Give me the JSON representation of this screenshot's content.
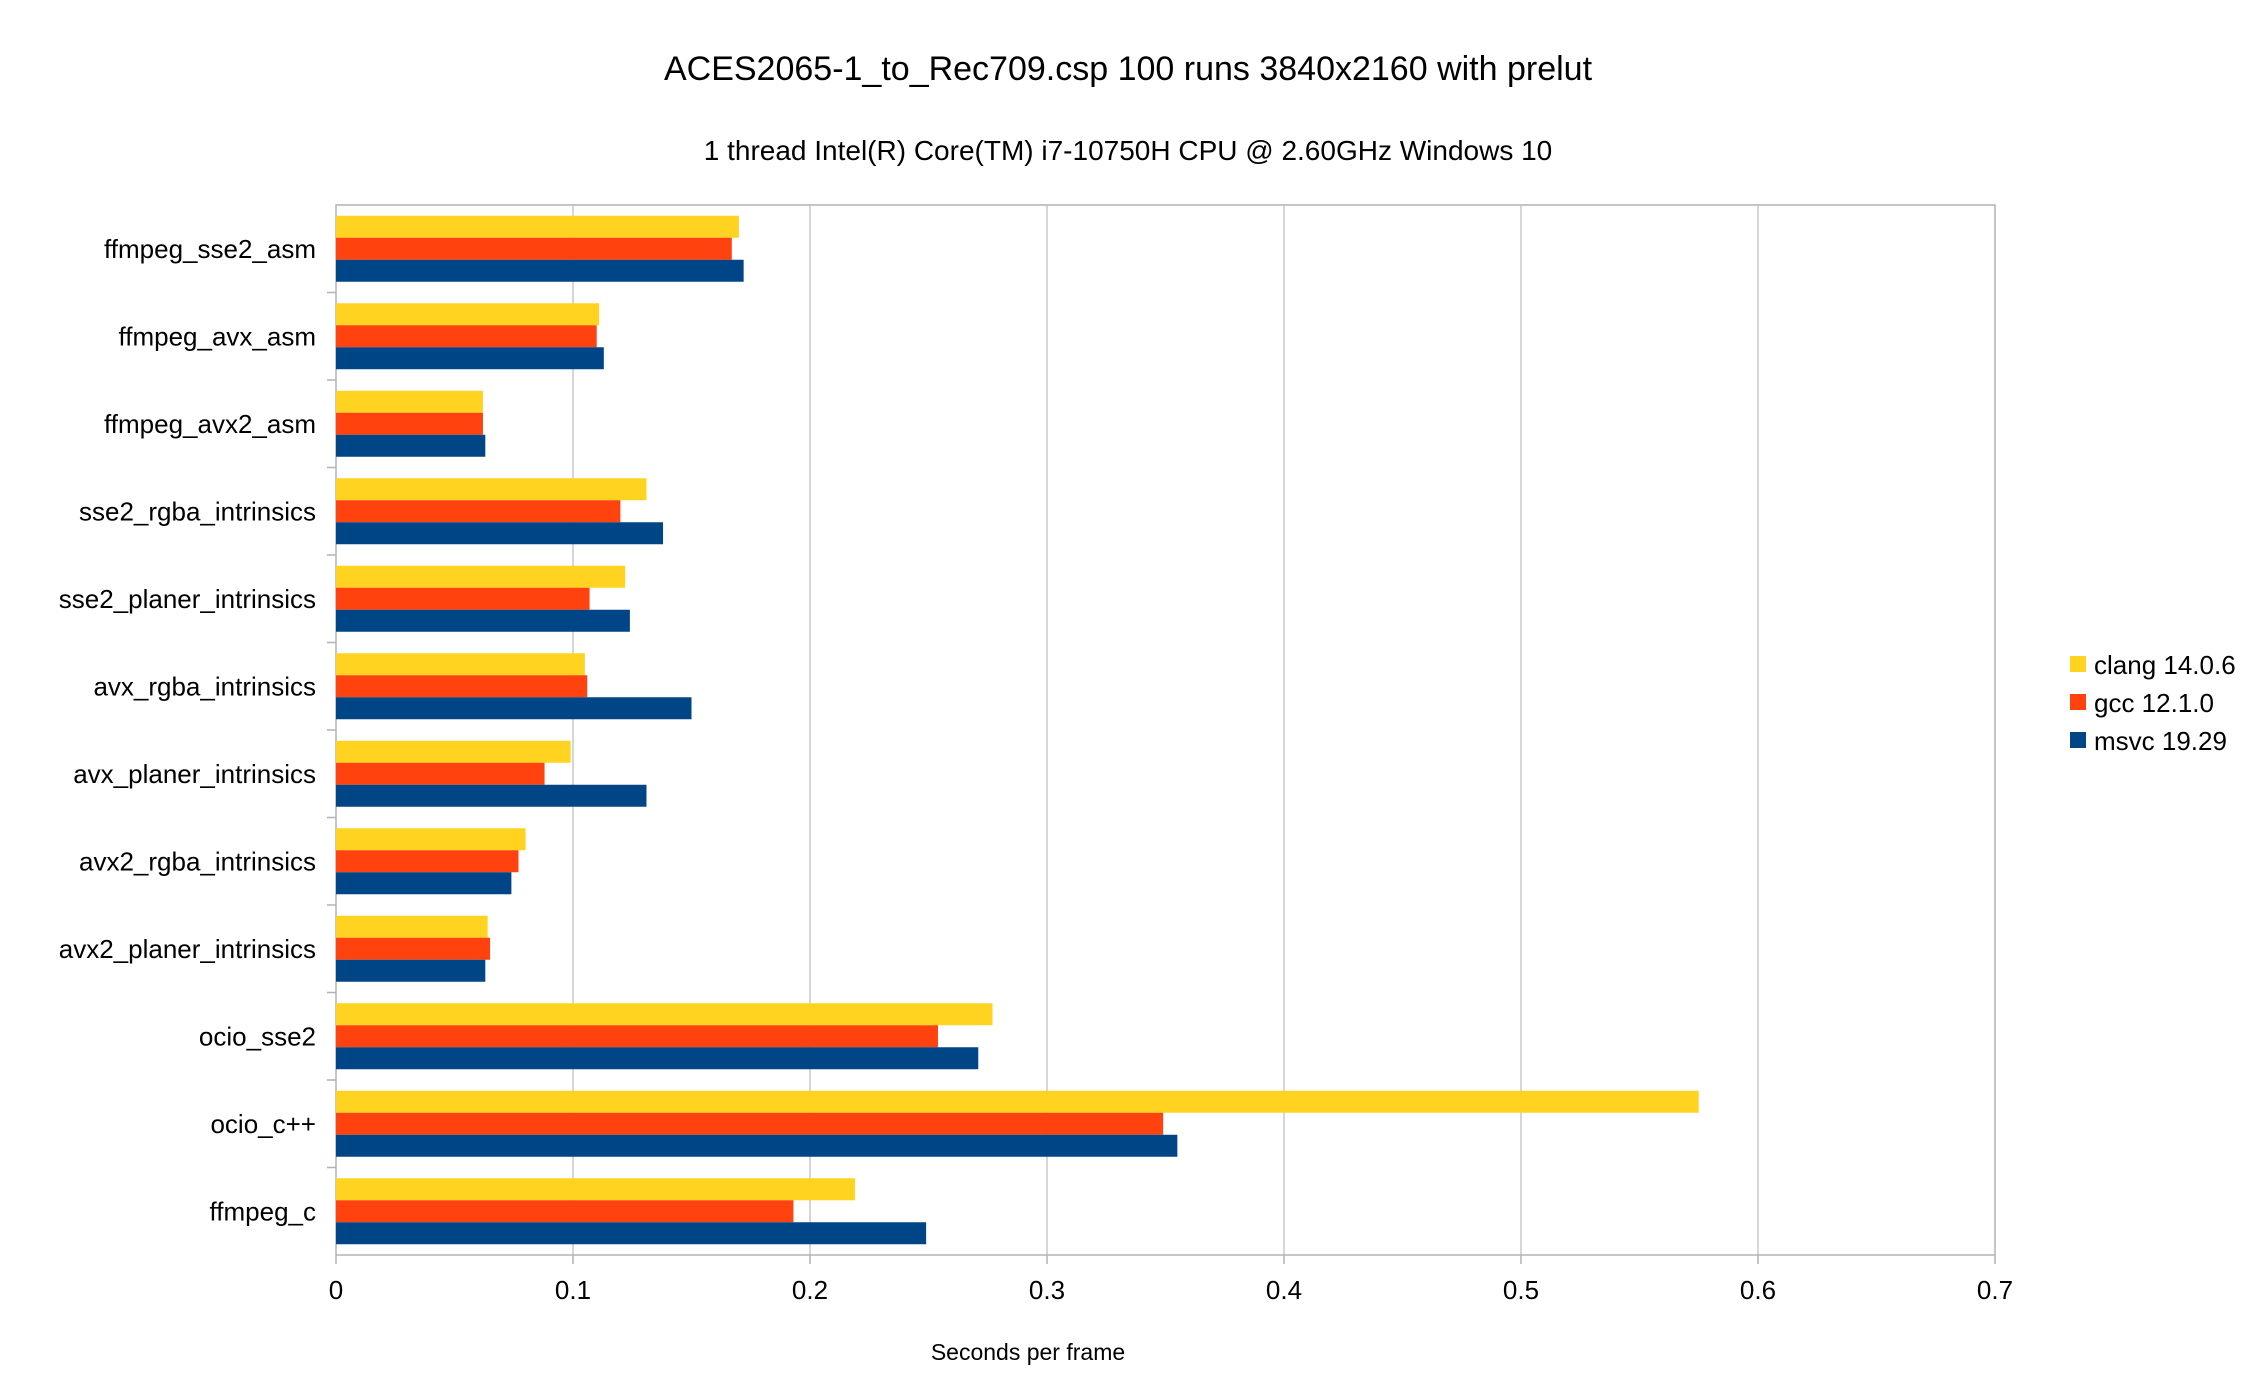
{
  "chart_data": {
    "type": "bar",
    "orientation": "horizontal",
    "title": "ACES2065-1_to_Rec709.csp 100 runs 3840x2160 with prelut",
    "subtitle": "1 thread Intel(R) Core(TM) i7-10750H CPU @ 2.60GHz Windows 10",
    "xlabel": "Seconds per frame",
    "ylabel": "",
    "xlim": [
      0,
      0.7
    ],
    "xticks": [
      0,
      0.1,
      0.2,
      0.3,
      0.4,
      0.5,
      0.6,
      0.7
    ],
    "xtick_labels": [
      "0",
      "0.1",
      "0.2",
      "0.3",
      "0.4",
      "0.5",
      "0.6",
      "0.7"
    ],
    "grid": true,
    "legend_position": "right",
    "categories": [
      "ffmpeg_sse2_asm",
      "ffmpeg_avx_asm",
      "ffmpeg_avx2_asm",
      "sse2_rgba_intrinsics",
      "sse2_planer_intrinsics",
      "avx_rgba_intrinsics",
      "avx_planer_intrinsics",
      "avx2_rgba_intrinsics",
      "avx2_planer_intrinsics",
      "ocio_sse2",
      "ocio_c++",
      "ffmpeg_c"
    ],
    "series": [
      {
        "name": "clang 14.0.6",
        "color": "#ffd320",
        "values": [
          0.17,
          0.111,
          0.062,
          0.131,
          0.122,
          0.105,
          0.099,
          0.08,
          0.064,
          0.277,
          0.575,
          0.219
        ]
      },
      {
        "name": "gcc 12.1.0",
        "color": "#ff420e",
        "values": [
          0.167,
          0.11,
          0.062,
          0.12,
          0.107,
          0.106,
          0.088,
          0.077,
          0.065,
          0.254,
          0.349,
          0.193
        ]
      },
      {
        "name": "msvc 19.29",
        "color": "#004586",
        "values": [
          0.172,
          0.113,
          0.063,
          0.138,
          0.124,
          0.15,
          0.131,
          0.074,
          0.063,
          0.271,
          0.355,
          0.249
        ]
      }
    ]
  }
}
